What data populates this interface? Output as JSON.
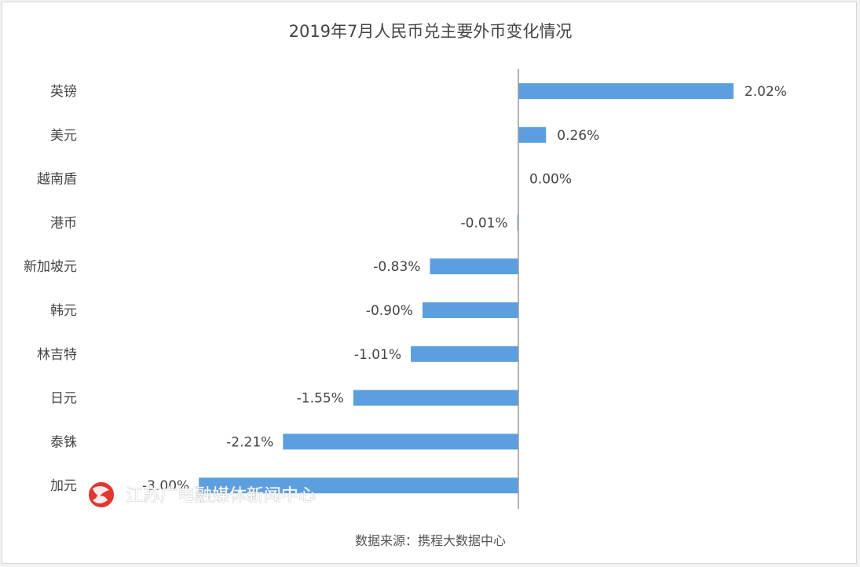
{
  "chart_data": {
    "type": "bar",
    "orientation": "horizontal",
    "title": "2019年7月人民币兑主要外币变化情况",
    "categories": [
      "英镑",
      "美元",
      "越南盾",
      "港币",
      "新加坡元",
      "韩元",
      "林吉特",
      "日元",
      "泰铢",
      "加元"
    ],
    "values": [
      2.02,
      0.26,
      0.0,
      -0.01,
      -0.83,
      -0.9,
      -1.01,
      -1.55,
      -2.21,
      -3.0
    ],
    "value_labels": [
      "2.02%",
      "0.26%",
      "0.00%",
      "-0.01%",
      "-0.83%",
      "-0.90%",
      "-1.01%",
      "-1.55%",
      "-2.21%",
      "-3.00%"
    ],
    "unit": "%",
    "xlim": [
      -3.0,
      2.02
    ],
    "grid": false,
    "legend": "none",
    "bar_color": "#5b9fe0"
  },
  "source_text": "数据来源：携程大数据中心",
  "watermark": {
    "text": "江苏广电融媒体新闻中心",
    "logo_color": "#e0382f"
  }
}
